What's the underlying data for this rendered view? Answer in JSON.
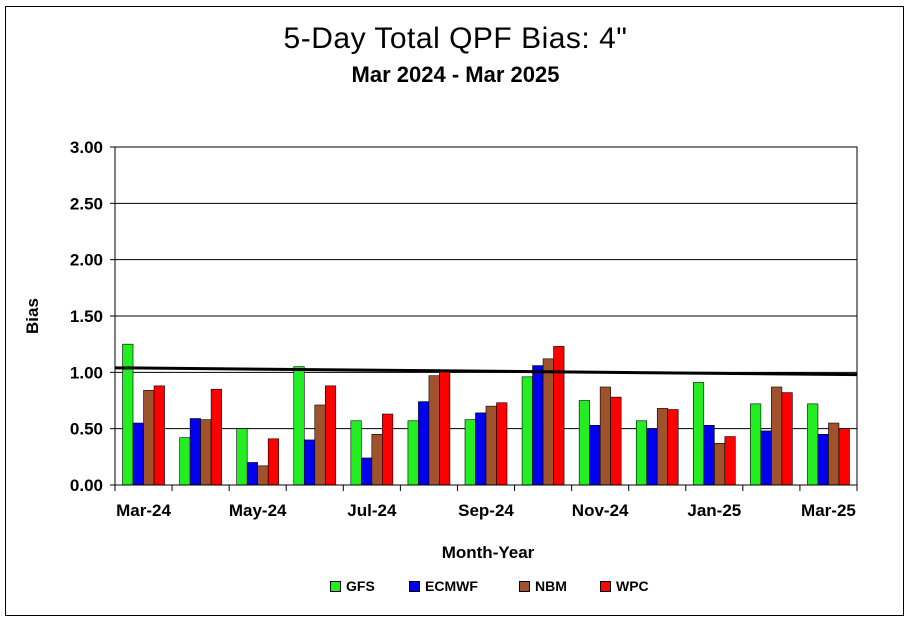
{
  "title": "5-Day Total QPF Bias:  4\"",
  "subtitle": "Mar 2024 - Mar 2025",
  "colors": {
    "GFS": "#22ee22",
    "ECMWF": "#0000ee",
    "NBM": "#a0522d",
    "WPC": "#ff0000",
    "reference_line": "#000000"
  },
  "chart_data": {
    "type": "bar",
    "title": "5-Day Total QPF Bias:  4\"",
    "subtitle": "Mar 2024 - Mar 2025",
    "xlabel": "Month-Year",
    "ylabel": "Bias",
    "ylim": [
      0,
      3
    ],
    "yticks": [
      "0.00",
      "0.50",
      "1.00",
      "1.50",
      "2.00",
      "2.50",
      "3.00"
    ],
    "grid": "horizontal",
    "legend_position": "bottom",
    "categories": [
      "Mar-24",
      "Apr-24",
      "May-24",
      "Jun-24",
      "Jul-24",
      "Aug-24",
      "Sep-24",
      "Oct-24",
      "Nov-24",
      "Dec-24",
      "Jan-25",
      "Feb-25",
      "Mar-25"
    ],
    "xtick_labels": [
      "Mar-24",
      "May-24",
      "Jul-24",
      "Sep-24",
      "Nov-24",
      "Jan-25",
      "Mar-25"
    ],
    "series": [
      {
        "name": "GFS",
        "values": [
          1.25,
          0.42,
          0.5,
          1.05,
          0.57,
          0.57,
          0.58,
          0.96,
          0.75,
          0.57,
          0.91,
          0.72,
          0.72
        ]
      },
      {
        "name": "ECMWF",
        "values": [
          0.55,
          0.59,
          0.2,
          0.4,
          0.24,
          0.74,
          0.64,
          1.06,
          0.53,
          0.5,
          0.53,
          0.48,
          0.45
        ]
      },
      {
        "name": "NBM",
        "values": [
          0.84,
          0.58,
          0.17,
          0.71,
          0.45,
          0.97,
          0.7,
          1.12,
          0.87,
          0.68,
          0.37,
          0.87,
          0.55
        ]
      },
      {
        "name": "WPC",
        "values": [
          0.88,
          0.85,
          0.41,
          0.88,
          0.63,
          1.02,
          0.73,
          1.23,
          0.78,
          0.67,
          0.43,
          0.82,
          0.5
        ]
      }
    ],
    "reference_line": {
      "start": 1.04,
      "end": 0.98
    }
  }
}
